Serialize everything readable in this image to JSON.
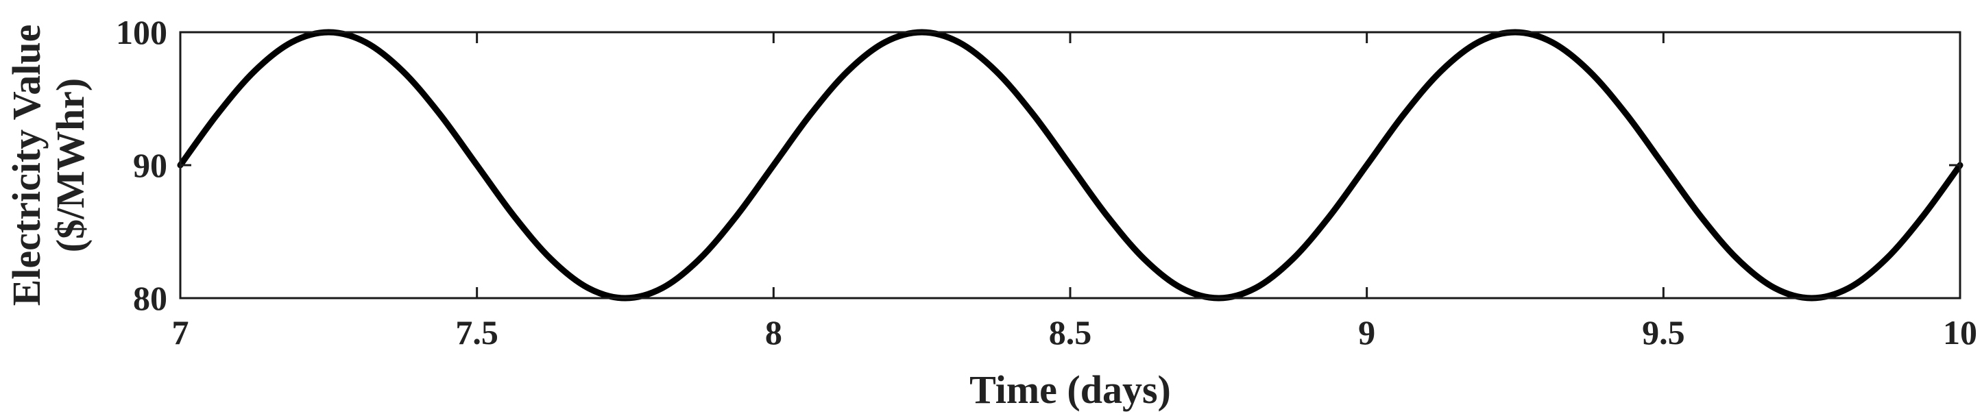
{
  "chart_data": {
    "type": "line",
    "title": "",
    "xlabel": "Time (days)",
    "ylabel_lines": [
      "Electricity Value",
      "($/MWhr)"
    ],
    "xlim": [
      7,
      10
    ],
    "ylim": [
      80,
      100
    ],
    "xticks": [
      7,
      7.5,
      8,
      8.5,
      9,
      9.5,
      10
    ],
    "xtick_labels": [
      "7",
      "7.5",
      "8",
      "8.5",
      "9",
      "9.5",
      "10"
    ],
    "yticks": [
      80,
      90,
      100
    ],
    "ytick_labels": [
      "80",
      "90",
      "100"
    ],
    "grid": false,
    "legend": "none",
    "line_color": "#000000",
    "series": [
      {
        "x": [
          7.0,
          7.0625,
          7.125,
          7.1875,
          7.25,
          7.3125,
          7.375,
          7.4375,
          7.5,
          7.5625,
          7.625,
          7.6875,
          7.75,
          7.8125,
          7.875,
          7.9375,
          8.0,
          8.0625,
          8.125,
          8.1875,
          8.25,
          8.3125,
          8.375,
          8.4375,
          8.5,
          8.5625,
          8.625,
          8.6875,
          8.75,
          8.8125,
          8.875,
          8.9375,
          9.0,
          9.0625,
          9.125,
          9.1875,
          9.25,
          9.3125,
          9.375,
          9.4375,
          9.5,
          9.5625,
          9.625,
          9.6875,
          9.75,
          9.8125,
          9.875,
          9.9375,
          10.0
        ],
        "y": [
          90.0,
          93.83,
          97.07,
          99.24,
          100.0,
          99.24,
          97.07,
          93.83,
          90.0,
          86.17,
          82.93,
          80.76,
          80.0,
          80.76,
          82.93,
          86.17,
          90.0,
          93.83,
          97.07,
          99.24,
          100.0,
          99.24,
          97.07,
          93.83,
          90.0,
          86.17,
          82.93,
          80.76,
          80.0,
          80.76,
          82.93,
          86.17,
          90.0,
          93.83,
          97.07,
          99.24,
          100.0,
          99.24,
          97.07,
          93.83,
          90.0,
          86.17,
          82.93,
          80.76,
          80.0,
          80.76,
          82.93,
          86.17,
          90.0
        ]
      }
    ]
  }
}
